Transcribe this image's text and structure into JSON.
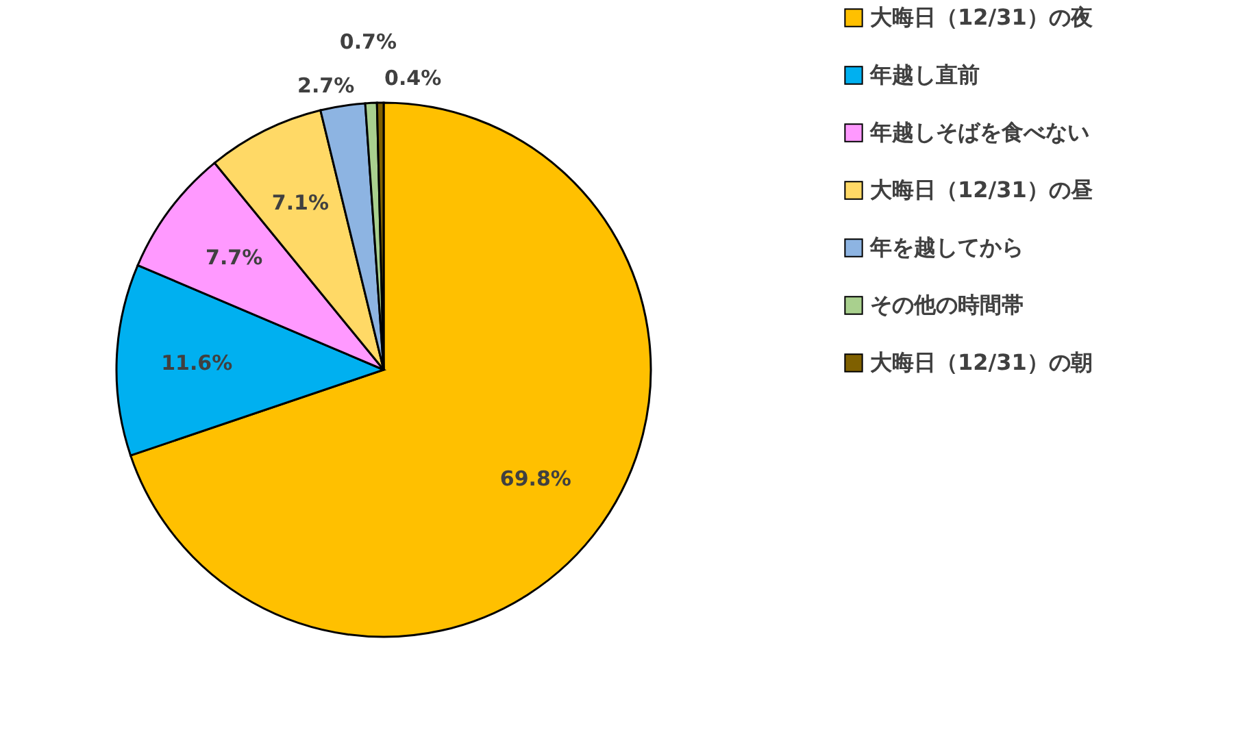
{
  "chart_data": {
    "type": "pie",
    "categories": [
      "大晦日（12/31）の夜",
      "年越し直前",
      "年越しそばを食べない",
      "大晦日（12/31）の昼",
      "年を越してから",
      "その他の時間帯",
      "大晦日（12/31）の朝"
    ],
    "values": [
      69.8,
      11.6,
      7.7,
      7.1,
      2.7,
      0.7,
      0.4
    ],
    "colors": [
      "#ffc000",
      "#00b0f0",
      "#ff99ff",
      "#ffd966",
      "#8db4e2",
      "#a9d08e",
      "#7f6000"
    ],
    "value_labels": [
      "69.8%",
      "11.6%",
      "7.7%",
      "7.1%",
      "2.7%",
      "0.7%",
      "0.4%"
    ],
    "legend": "right"
  }
}
